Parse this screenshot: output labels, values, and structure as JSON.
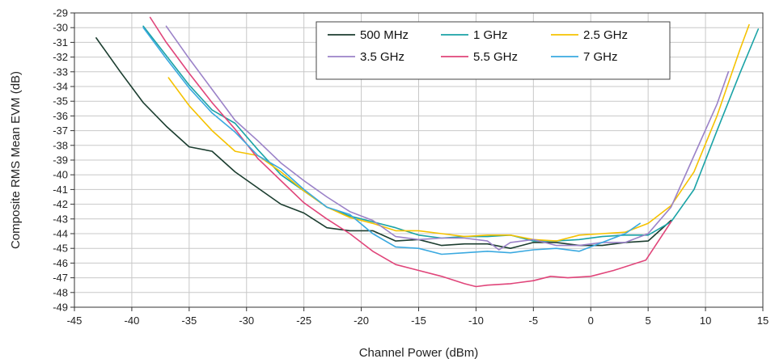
{
  "chart_data": {
    "type": "line",
    "xlabel": "Channel Power (dBm)",
    "ylabel": "Composite RMS Mean EVM (dB)",
    "xlim": [
      -45,
      15
    ],
    "ylim": [
      -49,
      -29
    ],
    "xticks": [
      "-45",
      "-40",
      "-35",
      "-30",
      "-25",
      "-20",
      "-15",
      "-10",
      "-5",
      "0",
      "5",
      "10",
      "15"
    ],
    "yticks": [
      "-29",
      "-30",
      "-31",
      "-32",
      "-33",
      "-34",
      "-35",
      "-36",
      "-37",
      "-38",
      "-39",
      "-40",
      "-41",
      "-42",
      "-43",
      "-44",
      "-45",
      "-46",
      "-47",
      "-48",
      "-49"
    ],
    "grid": true,
    "legend_position": "top-right",
    "series": [
      {
        "name": "500 MHz",
        "color": "#1b3d2f",
        "x": [
          -43.1,
          -41,
          -39,
          -37,
          -35,
          -33,
          -31,
          -29,
          -27,
          -25,
          -23,
          -21,
          -19,
          -17,
          -15,
          -13,
          -11,
          -9,
          -7,
          -5,
          -3,
          -1,
          1,
          3,
          5,
          7
        ],
        "y": [
          -30.7,
          -33,
          -35.1,
          -36.7,
          -38.1,
          -38.4,
          -39.8,
          -40.9,
          -42,
          -42.6,
          -43.6,
          -43.8,
          -43.8,
          -44.5,
          -44.4,
          -44.8,
          -44.7,
          -44.7,
          -45,
          -44.6,
          -44.6,
          -44.8,
          -44.8,
          -44.6,
          -44.5,
          -43.1
        ]
      },
      {
        "name": "1 GHz",
        "color": "#1aa3a6",
        "x": [
          -39,
          -37,
          -35,
          -33,
          -31,
          -29,
          -27,
          -25,
          -23,
          -21,
          -19,
          -17,
          -15,
          -13,
          -11,
          -9,
          -7,
          -5,
          -3,
          -1,
          1,
          3,
          5,
          7,
          9,
          11,
          13,
          14.6
        ],
        "y": [
          -29.9,
          -31.9,
          -33.9,
          -35.6,
          -36.5,
          -38.3,
          -40,
          -41.1,
          -42.2,
          -42.8,
          -43.2,
          -43.6,
          -44.1,
          -44.3,
          -44.2,
          -44.2,
          -44.1,
          -44.5,
          -44.5,
          -44.4,
          -44.2,
          -44.1,
          -44.1,
          -43.2,
          -41,
          -37,
          -33.1,
          -30.1
        ]
      },
      {
        "name": "2.5 GHz",
        "color": "#f5c200",
        "x": [
          -36.8,
          -35,
          -33,
          -31,
          -29,
          -27,
          -25,
          -23,
          -21,
          -19,
          -17,
          -15,
          -13,
          -11,
          -9,
          -7,
          -5,
          -3,
          -1,
          1,
          3,
          5,
          7,
          9,
          11,
          13,
          13.8
        ],
        "y": [
          -33.4,
          -35.3,
          -37,
          -38.4,
          -38.7,
          -39.8,
          -41.1,
          -42.2,
          -42.9,
          -43.3,
          -43.8,
          -43.8,
          -44,
          -44.2,
          -44.1,
          -44.1,
          -44.4,
          -44.5,
          -44.1,
          -44,
          -43.9,
          -43.3,
          -42.1,
          -39.8,
          -36,
          -31.5,
          -29.8
        ]
      },
      {
        "name": "3.5 GHz",
        "color": "#9b82c8",
        "x": [
          -37,
          -35,
          -33,
          -31,
          -29,
          -27,
          -25,
          -23,
          -21,
          -19,
          -17,
          -15,
          -13,
          -11,
          -9,
          -8,
          -7,
          -5,
          -3,
          -1,
          1,
          3,
          5,
          7,
          9,
          11,
          12
        ],
        "y": [
          -29.9,
          -32.1,
          -34.2,
          -36.3,
          -37.7,
          -39.2,
          -40.4,
          -41.5,
          -42.5,
          -43.1,
          -44.2,
          -44.4,
          -44.3,
          -44.3,
          -44.5,
          -45.1,
          -44.6,
          -44.4,
          -44.8,
          -44.8,
          -44.6,
          -44.6,
          -44,
          -42.2,
          -38.7,
          -35.2,
          -33
        ]
      },
      {
        "name": "5.5 GHz",
        "color": "#e0457a",
        "x": [
          -38.4,
          -37,
          -35,
          -33,
          -31,
          -29,
          -27,
          -25,
          -23,
          -21,
          -19,
          -17,
          -15,
          -13,
          -11,
          -10,
          -9,
          -7,
          -5,
          -3.5,
          -2,
          0,
          2,
          4.8,
          7
        ],
        "y": [
          -29.3,
          -31,
          -33.1,
          -35.1,
          -36.9,
          -38.9,
          -40.4,
          -41.9,
          -43,
          -44,
          -45.2,
          -46.1,
          -46.5,
          -46.9,
          -47.4,
          -47.6,
          -47.5,
          -47.4,
          -47.2,
          -46.9,
          -47,
          -46.9,
          -46.5,
          -45.8,
          -43.2
        ]
      },
      {
        "name": "7 GHz",
        "color": "#3aa9e0",
        "x": [
          -39,
          -37,
          -35,
          -33,
          -31,
          -29,
          -27,
          -25,
          -23,
          -21,
          -19,
          -17,
          -15,
          -13,
          -11,
          -9,
          -7,
          -5,
          -3,
          -1,
          1,
          3,
          4.3
        ],
        "y": [
          -30,
          -32.1,
          -34.1,
          -35.8,
          -37.1,
          -38.7,
          -39.6,
          -41,
          -42.2,
          -42.7,
          -44,
          -44.9,
          -45,
          -45.4,
          -45.3,
          -45.2,
          -45.3,
          -45.1,
          -45,
          -45.2,
          -44.6,
          -44,
          -43.3
        ]
      }
    ]
  }
}
